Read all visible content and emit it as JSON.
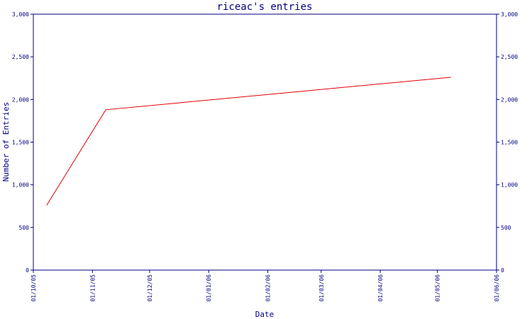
{
  "chart_data": {
    "type": "line",
    "title": "riceac's entries",
    "xlabel": "Date",
    "ylabel": "Number of Entries",
    "ylim": [
      0,
      3000
    ],
    "y_ticks": [
      0,
      500,
      1000,
      1500,
      2000,
      2500,
      3000
    ],
    "y_tick_labels": [
      "0",
      "500",
      "1,000",
      "1,500",
      "2,000",
      "2,500",
      "3,000"
    ],
    "x_ticks": [
      "2005-10-01",
      "2005-11-01",
      "2005-12-01",
      "2006-01-01",
      "2006-02-01",
      "2006-03-01",
      "2006-04-01",
      "2006-05-01",
      "2006-06-01"
    ],
    "x_tick_labels": [
      "01/10/05",
      "01/11/05",
      "01/12/05",
      "01/01/06",
      "01/02/06",
      "01/03/06",
      "01/04/06",
      "01/05/06",
      "01/06/06"
    ],
    "xlim": [
      "2005-10-01",
      "2006-06-01"
    ],
    "grid": false,
    "legend": "none",
    "series": [
      {
        "color": "#e00000",
        "x": [
          "2005-10-08",
          "2005-11-08",
          "2006-05-08"
        ],
        "y": [
          760,
          1880,
          2260
        ]
      }
    ]
  }
}
